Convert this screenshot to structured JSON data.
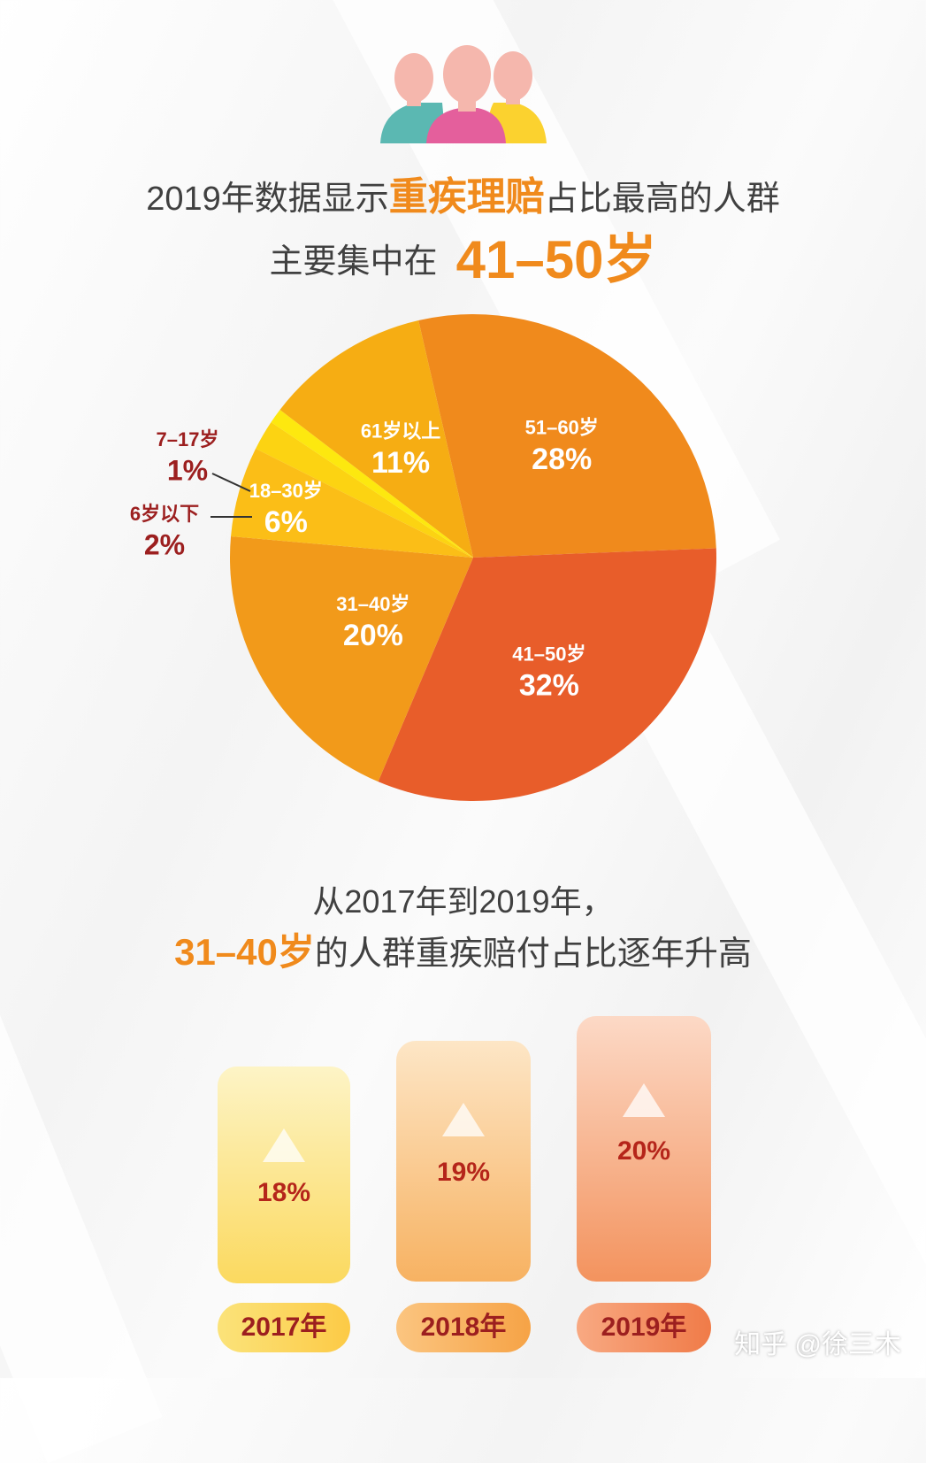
{
  "header": {
    "line1_a": "2019年数据显示",
    "line1_highlight": "重疾理赔",
    "line1_b": "占比最高的人群",
    "line2_a": "主要集中在",
    "line2_highlight": "41–50岁"
  },
  "chart_data": [
    {
      "type": "pie",
      "slices": [
        {
          "label": "51–60岁",
          "value": 28,
          "display": "28%",
          "color": "#f08a1c"
        },
        {
          "label": "41–50岁",
          "value": 32,
          "display": "32%",
          "color": "#e85d2a"
        },
        {
          "label": "31–40岁",
          "value": 20,
          "display": "20%",
          "color": "#f29a1a"
        },
        {
          "label": "18–30岁",
          "value": 6,
          "display": "6%",
          "color": "#fbbe17"
        },
        {
          "label": "6岁以下",
          "value": 2,
          "display": "2%",
          "color": "#fcd312"
        },
        {
          "label": "7–17岁",
          "value": 1,
          "display": "1%",
          "color": "#fde80f"
        },
        {
          "label": "61岁以上",
          "value": 11,
          "display": "11%",
          "color": "#f6ad13"
        }
      ]
    },
    {
      "type": "bar",
      "categories": [
        "2017年",
        "2018年",
        "2019年"
      ],
      "values": [
        18,
        19,
        20
      ],
      "displays": [
        "18%",
        "19%",
        "20%"
      ]
    }
  ],
  "section2": {
    "line1": "从2017年到2019年，",
    "line2_highlight": "31–40岁",
    "line2_rest": "的人群重疾赔付占比逐年升高"
  },
  "watermark": "知乎 @徐三木",
  "colors": {
    "accent": "#f08a1c",
    "label_dark": "#9c1f1f"
  }
}
